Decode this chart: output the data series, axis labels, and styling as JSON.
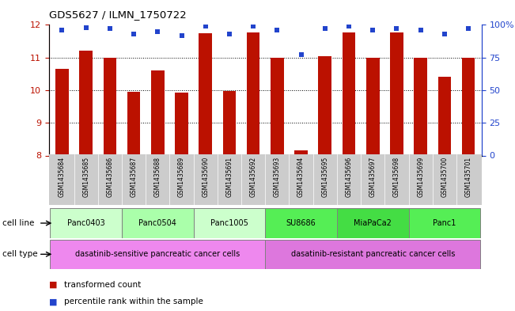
{
  "title": "GDS5627 / ILMN_1750722",
  "samples": [
    "GSM1435684",
    "GSM1435685",
    "GSM1435686",
    "GSM1435687",
    "GSM1435688",
    "GSM1435689",
    "GSM1435690",
    "GSM1435691",
    "GSM1435692",
    "GSM1435693",
    "GSM1435694",
    "GSM1435695",
    "GSM1435696",
    "GSM1435697",
    "GSM1435698",
    "GSM1435699",
    "GSM1435700",
    "GSM1435701"
  ],
  "bar_values": [
    10.65,
    11.2,
    11.0,
    9.95,
    10.6,
    9.93,
    11.75,
    9.97,
    11.78,
    11.0,
    8.15,
    11.05,
    11.78,
    11.0,
    11.78,
    11.0,
    10.4,
    11.0
  ],
  "percentile_values": [
    96,
    98,
    97,
    93,
    95,
    92,
    99,
    93,
    99,
    96,
    77,
    97,
    99,
    96,
    97,
    96,
    93,
    97
  ],
  "ylim_left": [
    8,
    12
  ],
  "ylim_right": [
    0,
    100
  ],
  "yticks_left": [
    8,
    9,
    10,
    11,
    12
  ],
  "yticks_right": [
    0,
    25,
    50,
    75,
    100
  ],
  "ytick_labels_right": [
    "0",
    "25",
    "50",
    "75",
    "100%"
  ],
  "bar_color": "#bb1100",
  "percentile_color": "#2244cc",
  "cell_lines": [
    {
      "label": "Panc0403",
      "start": 0,
      "end": 3,
      "color": "#ccffcc"
    },
    {
      "label": "Panc0504",
      "start": 3,
      "end": 6,
      "color": "#aaffaa"
    },
    {
      "label": "Panc1005",
      "start": 6,
      "end": 9,
      "color": "#ccffcc"
    },
    {
      "label": "SU8686",
      "start": 9,
      "end": 12,
      "color": "#55ee55"
    },
    {
      "label": "MiaPaCa2",
      "start": 12,
      "end": 15,
      "color": "#44dd44"
    },
    {
      "label": "Panc1",
      "start": 15,
      "end": 18,
      "color": "#55ee55"
    }
  ],
  "cell_types": [
    {
      "label": "dasatinib-sensitive pancreatic cancer cells",
      "start": 0,
      "end": 9,
      "color": "#ee88ee"
    },
    {
      "label": "dasatinib-resistant pancreatic cancer cells",
      "start": 9,
      "end": 18,
      "color": "#dd77dd"
    }
  ],
  "legend_bar_label": "transformed count",
  "legend_pct_label": "percentile rank within the sample",
  "cell_line_label": "cell line",
  "cell_type_label": "cell type",
  "sample_label_color": "#dddddd",
  "grid_yticks": [
    9,
    10,
    11
  ]
}
